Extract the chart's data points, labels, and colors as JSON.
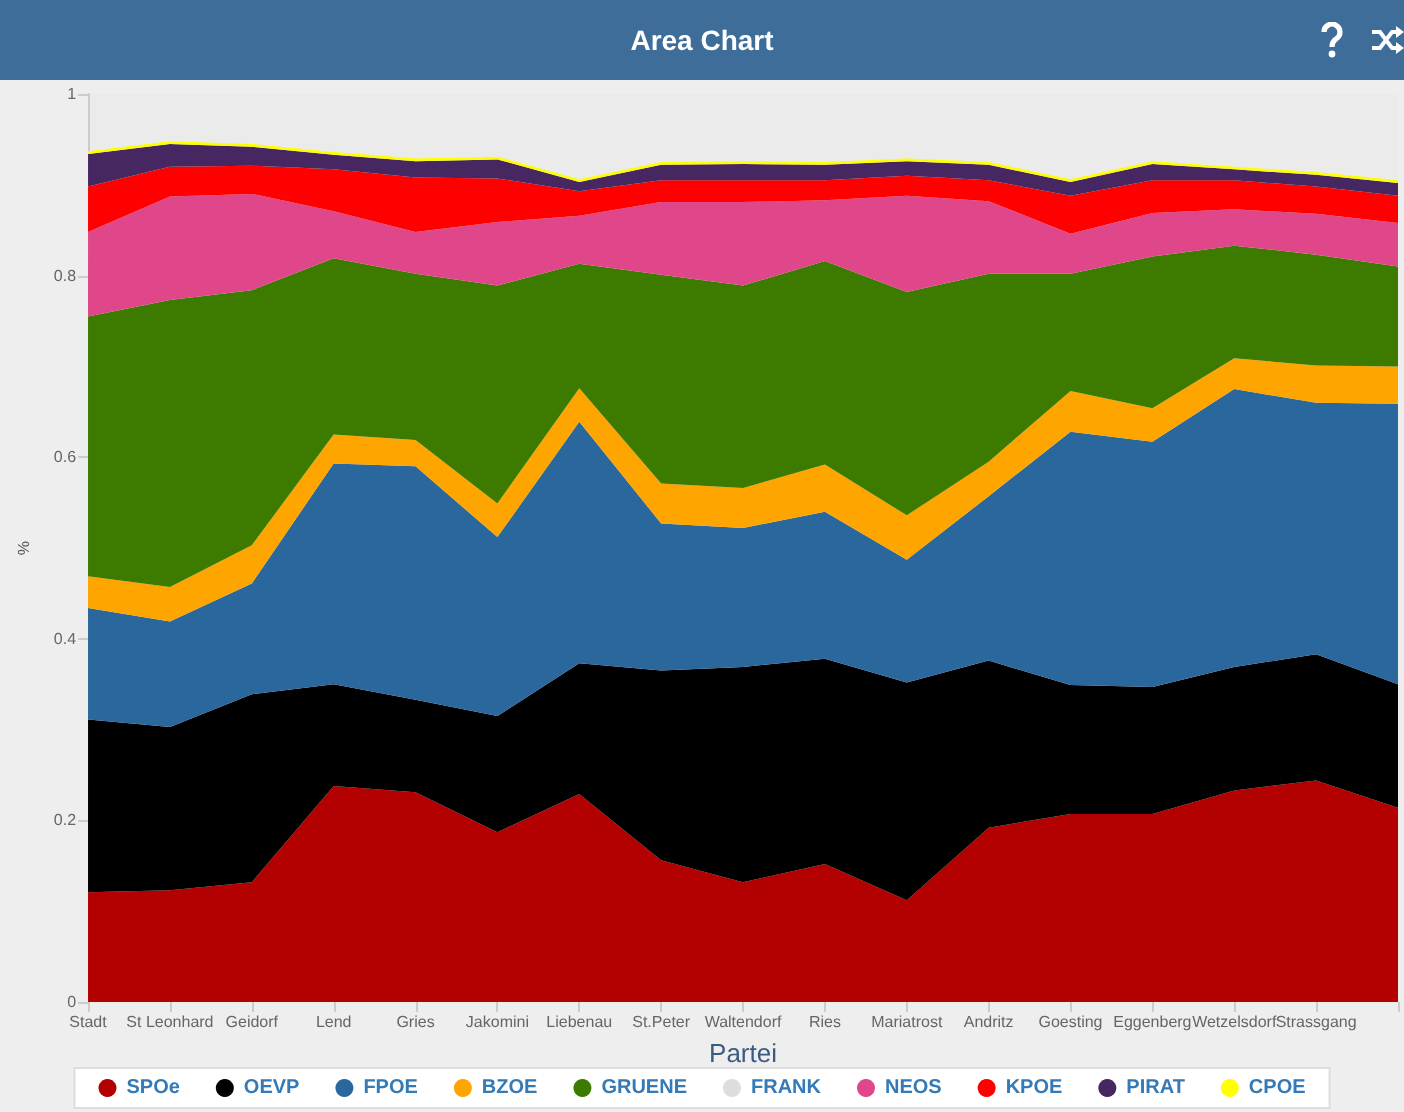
{
  "chart_data": {
    "type": "area",
    "title": "Area Chart",
    "xlabel": "Partei",
    "ylabel": "%",
    "stacked": true,
    "legend": "bottom",
    "grid": false,
    "categories": [
      "Stadt",
      "St Leonhard",
      "Geidorf",
      "Lend",
      "Gries",
      "Jakomini",
      "Liebenau",
      "St.Peter",
      "Waltendorf",
      "Ries",
      "Mariatrost",
      "Andritz",
      "Goesting",
      "Eggenberg",
      "Wetzelsdorf",
      "Strassgang",
      null
    ],
    "ylim": [
      0,
      1
    ],
    "yticks": [
      0,
      0.2,
      0.4,
      0.6,
      0.8,
      1
    ],
    "series": [
      {
        "name": "SPOe",
        "color": "#b30000",
        "values": [
          0.121,
          0.123,
          0.132,
          0.238,
          0.231,
          0.187,
          0.229,
          0.156,
          0.132,
          0.152,
          0.112,
          0.192,
          0.207,
          0.207,
          0.233,
          0.244,
          0.214
        ]
      },
      {
        "name": "OEVP",
        "color": "#000000",
        "values": [
          0.19,
          0.18,
          0.207,
          0.112,
          0.102,
          0.128,
          0.144,
          0.209,
          0.237,
          0.226,
          0.24,
          0.184,
          0.142,
          0.14,
          0.136,
          0.139,
          0.136
        ]
      },
      {
        "name": "FPOE",
        "color": "#2a679d",
        "values": [
          0.123,
          0.116,
          0.122,
          0.243,
          0.257,
          0.197,
          0.266,
          0.162,
          0.153,
          0.162,
          0.135,
          0.181,
          0.279,
          0.27,
          0.306,
          0.277,
          0.309
        ]
      },
      {
        "name": "BZOE",
        "color": "#ffa500",
        "values": [
          0.035,
          0.038,
          0.042,
          0.032,
          0.029,
          0.037,
          0.037,
          0.044,
          0.044,
          0.052,
          0.049,
          0.038,
          0.045,
          0.037,
          0.034,
          0.041,
          0.041
        ]
      },
      {
        "name": "GRUENE",
        "color": "#3d7a00",
        "values": [
          0.286,
          0.316,
          0.281,
          0.194,
          0.183,
          0.24,
          0.137,
          0.23,
          0.223,
          0.224,
          0.246,
          0.207,
          0.129,
          0.167,
          0.124,
          0.122,
          0.11
        ]
      },
      {
        "name": "FRANK",
        "color": "#dddddd",
        "values": [
          null,
          null,
          null,
          null,
          null,
          null,
          null,
          null,
          null,
          null,
          null,
          null,
          null,
          null,
          null,
          null,
          null
        ]
      },
      {
        "name": "NEOS",
        "color": "#e0468a",
        "values": [
          0.093,
          0.114,
          0.106,
          0.052,
          0.046,
          0.07,
          0.053,
          0.08,
          0.092,
          0.067,
          0.106,
          0.08,
          0.044,
          0.048,
          0.04,
          0.045,
          0.048
        ]
      },
      {
        "name": "KPOE",
        "color": "#ff0000",
        "values": [
          0.05,
          0.033,
          0.031,
          0.046,
          0.06,
          0.048,
          0.027,
          0.024,
          0.024,
          0.022,
          0.022,
          0.023,
          0.042,
          0.036,
          0.032,
          0.03,
          0.03
        ]
      },
      {
        "name": "PIRAT",
        "color": "#472761",
        "values": [
          0.036,
          0.025,
          0.021,
          0.016,
          0.018,
          0.021,
          0.01,
          0.017,
          0.018,
          0.017,
          0.016,
          0.017,
          0.015,
          0.018,
          0.012,
          0.013,
          0.014
        ]
      },
      {
        "name": "CPOE",
        "color": "#ffff00",
        "values": [
          0.003,
          0.003,
          0.003,
          0.003,
          0.003,
          0.003,
          0.003,
          0.003,
          0.003,
          0.003,
          0.003,
          0.003,
          0.003,
          0.003,
          0.003,
          0.003,
          0.003
        ]
      }
    ]
  }
}
